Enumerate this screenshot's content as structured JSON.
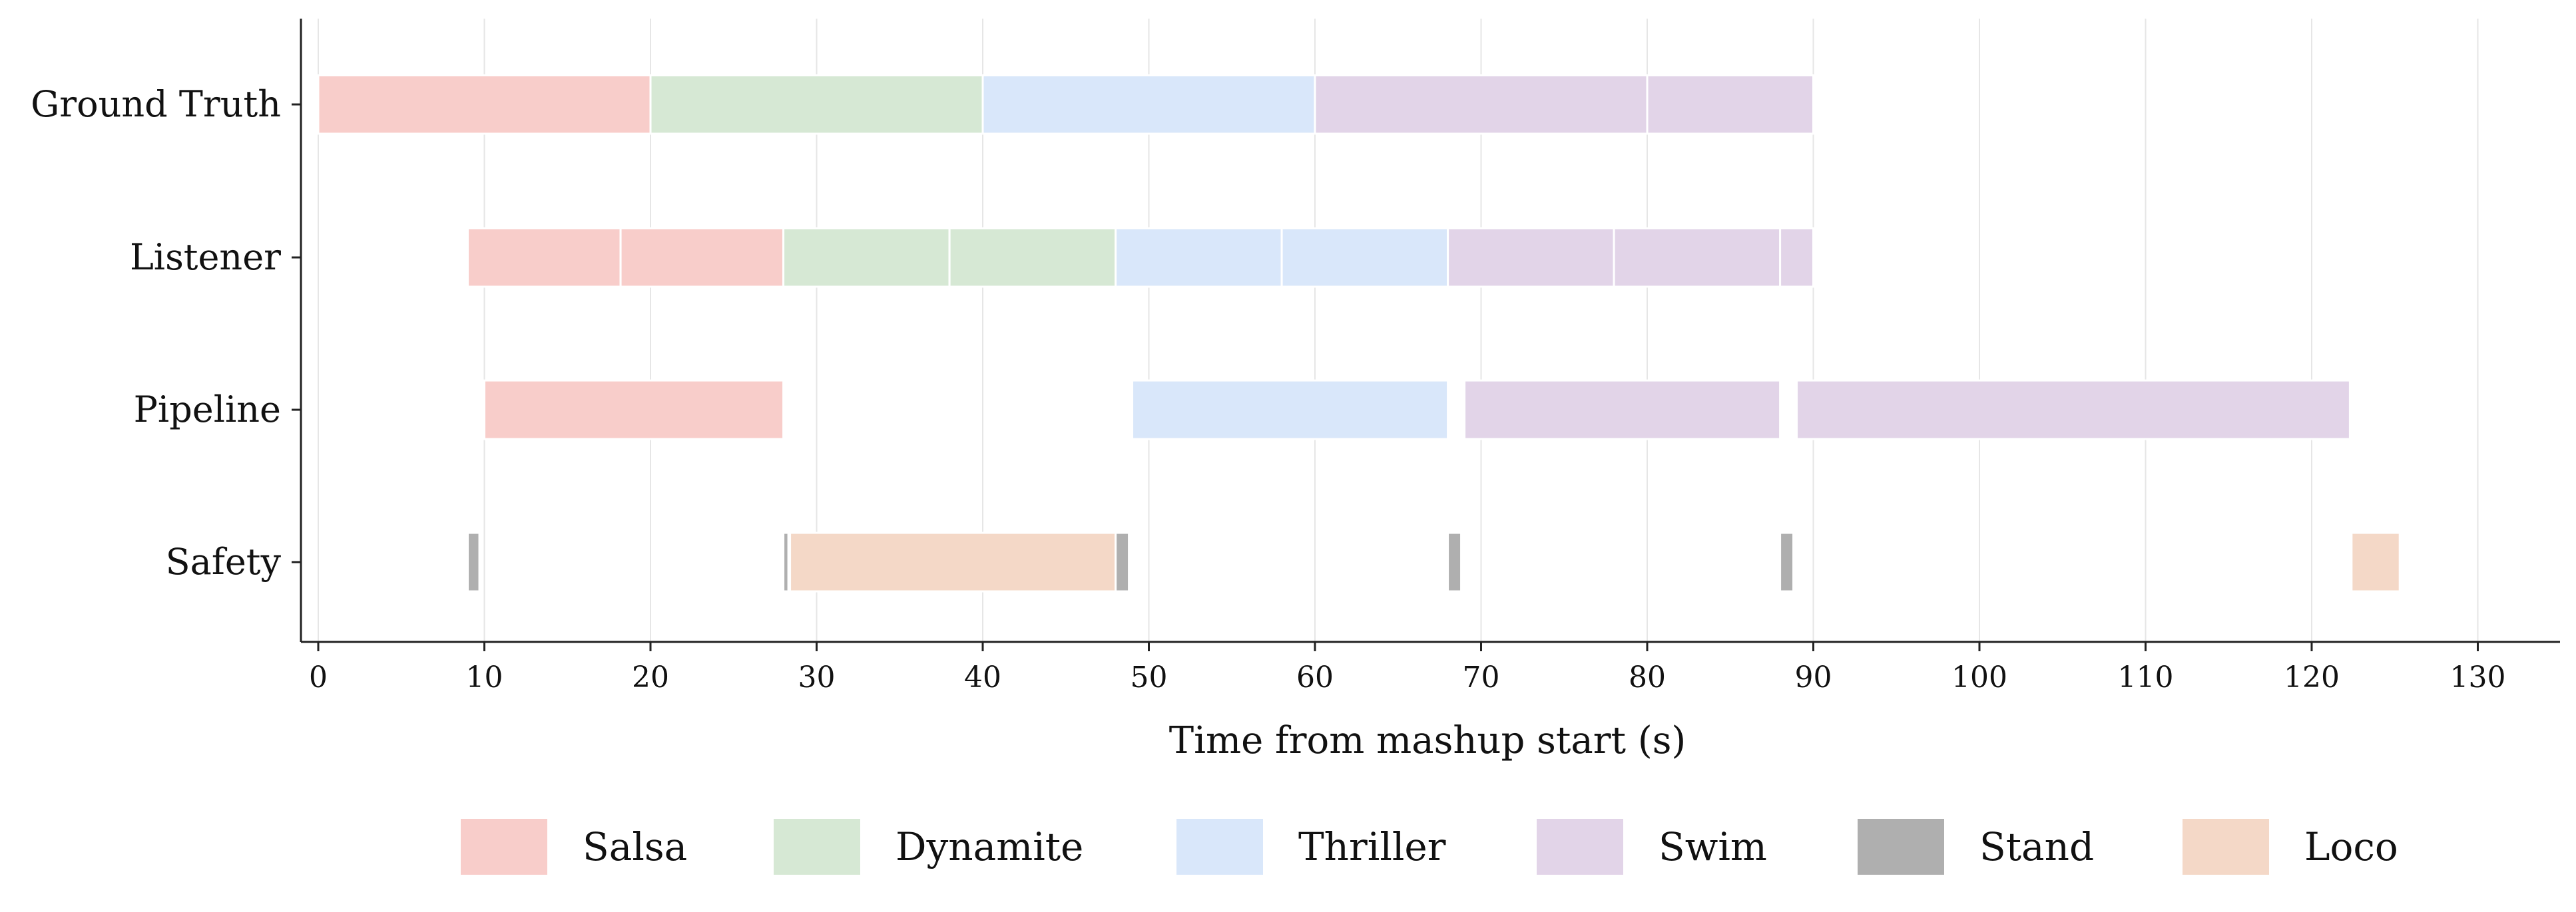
{
  "chart_data": {
    "type": "timeline",
    "xlabel": "Time from mashup start (s)",
    "xlim": [
      -1,
      135
    ],
    "xticks": [
      0,
      10,
      20,
      30,
      40,
      50,
      60,
      70,
      80,
      90,
      100,
      110,
      120,
      130
    ],
    "grid": "vertical",
    "legend_placement": "bottom",
    "categories": [
      {
        "name": "Salsa",
        "color": "#f8cdca"
      },
      {
        "name": "Dynamite",
        "color": "#d6e8d4"
      },
      {
        "name": "Thriller",
        "color": "#d9e7fa"
      },
      {
        "name": "Swim",
        "color": "#e2d4e8"
      },
      {
        "name": "Stand",
        "color": "#afafaf"
      },
      {
        "name": "Loco",
        "color": "#f4d8c7"
      }
    ],
    "rows": [
      {
        "name": "Ground Truth",
        "segments": [
          {
            "label": "Salsa",
            "start": 0,
            "end": 20
          },
          {
            "label": "Dynamite",
            "start": 20,
            "end": 40
          },
          {
            "label": "Thriller",
            "start": 40,
            "end": 60
          },
          {
            "label": "Swim",
            "start": 60,
            "end": 80
          },
          {
            "label": "Swim",
            "start": 80,
            "end": 90
          }
        ]
      },
      {
        "name": "Listener",
        "segments": [
          {
            "label": "Salsa",
            "start": 9,
            "end": 18.2
          },
          {
            "label": "Salsa",
            "start": 18.2,
            "end": 28
          },
          {
            "label": "Dynamite",
            "start": 28,
            "end": 38
          },
          {
            "label": "Dynamite",
            "start": 38,
            "end": 48
          },
          {
            "label": "Thriller",
            "start": 48,
            "end": 58
          },
          {
            "label": "Thriller",
            "start": 58,
            "end": 68
          },
          {
            "label": "Swim",
            "start": 68,
            "end": 78
          },
          {
            "label": "Swim",
            "start": 78,
            "end": 88
          },
          {
            "label": "Swim",
            "start": 88,
            "end": 90
          }
        ]
      },
      {
        "name": "Pipeline",
        "segments": [
          {
            "label": "Salsa",
            "start": 10,
            "end": 28
          },
          {
            "label": "Thriller",
            "start": 49,
            "end": 68
          },
          {
            "label": "Swim",
            "start": 69,
            "end": 88
          },
          {
            "label": "Swim",
            "start": 89,
            "end": 122.3
          }
        ]
      },
      {
        "name": "Safety",
        "segments": [
          {
            "label": "Stand",
            "start": 9,
            "end": 9.7
          },
          {
            "label": "Stand",
            "start": 28,
            "end": 28.3
          },
          {
            "label": "Loco",
            "start": 28.4,
            "end": 48
          },
          {
            "label": "Stand",
            "start": 48,
            "end": 48.8
          },
          {
            "label": "Stand",
            "start": 68,
            "end": 68.8
          },
          {
            "label": "Stand",
            "start": 88,
            "end": 88.8
          },
          {
            "label": "Loco",
            "start": 122.4,
            "end": 125.3
          }
        ]
      }
    ]
  }
}
